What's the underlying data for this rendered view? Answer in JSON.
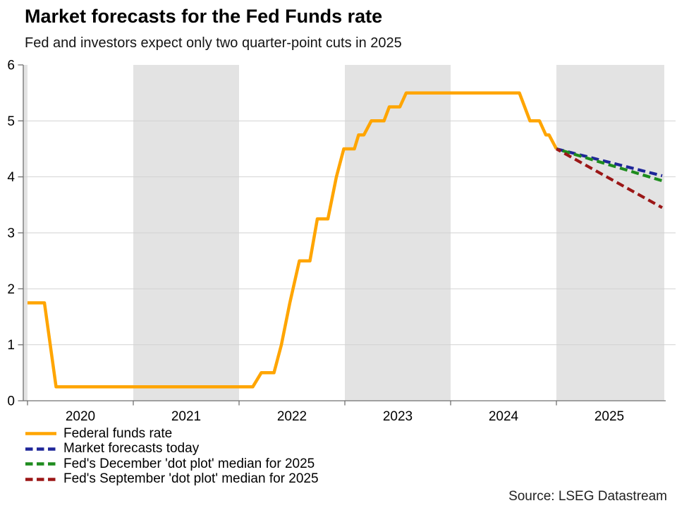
{
  "page": {
    "source": "Source: LSEG Datastream"
  },
  "chart_data": {
    "type": "line",
    "title": "Market forecasts for the Fed Funds rate",
    "subtitle": "Fed and investors expect only two quarter-point cuts in 2025",
    "x_axis": {
      "range": [
        2019.96,
        2026.02
      ],
      "ticks": [
        2020,
        2021,
        2022,
        2023,
        2024,
        2025
      ],
      "tick_labels": [
        "2020",
        "2021",
        "2022",
        "2023",
        "2024",
        "2025"
      ]
    },
    "y_axis": {
      "range": [
        0,
        6
      ],
      "ticks": [
        0,
        1,
        2,
        3,
        4,
        5,
        6
      ]
    },
    "grid": true,
    "legend_position": "bottom-left",
    "shaded_bands": [
      [
        2019.96,
        2020.0
      ],
      [
        2021.0,
        2022.0
      ],
      [
        2023.0,
        2024.0
      ],
      [
        2025.0,
        2026.02
      ]
    ],
    "colors": {
      "band": "#E3E3E3",
      "gridline": "#D2D2D2",
      "axis": "#707070",
      "tick_text": "#000000"
    },
    "series": [
      {
        "name": "Federal funds rate",
        "color": "#FFA500",
        "style": "solid",
        "points": [
          [
            2020.0,
            1.75
          ],
          [
            2020.16,
            1.75
          ],
          [
            2020.27,
            0.25
          ],
          [
            2022.13,
            0.25
          ],
          [
            2022.21,
            0.5
          ],
          [
            2022.33,
            0.5
          ],
          [
            2022.4,
            1.0
          ],
          [
            2022.48,
            1.75
          ],
          [
            2022.57,
            2.5
          ],
          [
            2022.67,
            2.5
          ],
          [
            2022.74,
            3.25
          ],
          [
            2022.84,
            3.25
          ],
          [
            2022.92,
            4.0
          ],
          [
            2022.99,
            4.5
          ],
          [
            2023.09,
            4.5
          ],
          [
            2023.13,
            4.75
          ],
          [
            2023.18,
            4.75
          ],
          [
            2023.25,
            5.0
          ],
          [
            2023.37,
            5.0
          ],
          [
            2023.42,
            5.25
          ],
          [
            2023.52,
            5.25
          ],
          [
            2023.58,
            5.5
          ],
          [
            2024.65,
            5.5
          ],
          [
            2024.75,
            5.0
          ],
          [
            2024.84,
            5.0
          ],
          [
            2024.9,
            4.75
          ],
          [
            2024.93,
            4.75
          ],
          [
            2025.0,
            4.5
          ]
        ]
      },
      {
        "name": "Market forecasts today",
        "color": "#1F2699",
        "style": "dashed",
        "points": [
          [
            2025.0,
            4.5
          ],
          [
            2026.0,
            4.02
          ]
        ]
      },
      {
        "name": "Fed's December 'dot plot' median for 2025",
        "color": "#1E8C1E",
        "style": "dashed",
        "points": [
          [
            2025.0,
            4.5
          ],
          [
            2026.0,
            3.93
          ]
        ]
      },
      {
        "name": "Fed's September 'dot plot' median for 2025",
        "color": "#9B1717",
        "style": "dashed",
        "points": [
          [
            2025.0,
            4.5
          ],
          [
            2026.0,
            3.45
          ]
        ]
      }
    ]
  }
}
